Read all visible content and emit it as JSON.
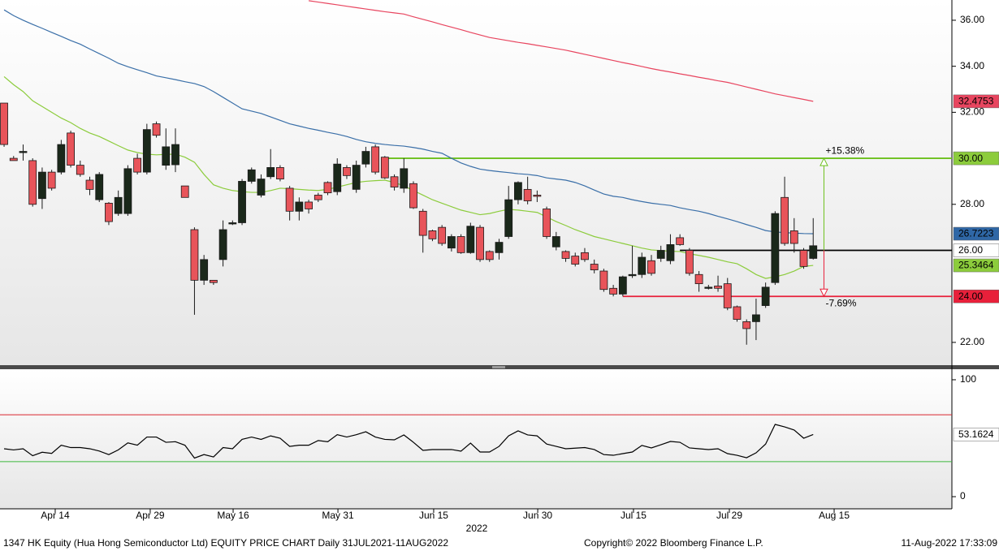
{
  "chart_data": [
    {
      "type": "candlestick",
      "xlim": [
        -0.43,
        99.57
      ],
      "ylim": [
        21.01,
        36.88
      ],
      "yticks": [
        {
          "value": 22,
          "label": "22.00"
        },
        {
          "value": 28,
          "label": "28.00"
        },
        {
          "value": 32,
          "label": "32.00"
        },
        {
          "value": 34,
          "label": "34.00"
        },
        {
          "value": 36,
          "label": "36.00"
        }
      ],
      "up_color": "#1a281a",
      "down_color": "#e8545a",
      "open": [
        32.4,
        30.0,
        30.25,
        29.9,
        28.25,
        29.4,
        29.4,
        31.1,
        29.7,
        29.05,
        28.2,
        28.05,
        27.6,
        27.6,
        30.0,
        29.4,
        31.5,
        29.7,
        29.72,
        28.8,
        26.9,
        24.7,
        24.7,
        25.6,
        27.15,
        27.2,
        29.0,
        28.4,
        29.2,
        29.6,
        28.7,
        27.7,
        28.1,
        28.4,
        28.95,
        28.55,
        29.6,
        28.65,
        29.75,
        30.5,
        30.05,
        29.2,
        28.7,
        28.9,
        27.7,
        26.85,
        27.0,
        26.1,
        26.6,
        25.9,
        27.0,
        25.95,
        25.9,
        26.6,
        28.2,
        28.65,
        28.4,
        27.8,
        26.15,
        25.95,
        25.75,
        25.9,
        25.4,
        25.1,
        24.35,
        24.1,
        24.9,
        24.95,
        25.55,
        25.65,
        25.55,
        26.55,
        26.0,
        24.95,
        24.35,
        24.45,
        24.55,
        23.55,
        22.9,
        22.9,
        23.6,
        24.6,
        28.3,
        26.85,
        26.0,
        25.65
      ],
      "high": [
        32.4,
        30.1,
        30.6,
        30.0,
        29.6,
        29.5,
        30.8,
        31.2,
        29.9,
        29.2,
        29.4,
        28.1,
        28.6,
        29.7,
        30.2,
        31.5,
        31.6,
        31.3,
        31.3,
        28.8,
        27.0,
        25.8,
        24.7,
        27.3,
        27.3,
        29.1,
        29.6,
        29.3,
        30.4,
        29.7,
        28.8,
        28.3,
        28.2,
        28.5,
        29.0,
        30.0,
        29.7,
        29.9,
        30.5,
        30.6,
        30.1,
        29.3,
        30.0,
        29.0,
        27.8,
        26.9,
        27.1,
        26.7,
        26.7,
        27.2,
        27.1,
        26.0,
        26.5,
        28.8,
        29.0,
        29.2,
        28.6,
        27.9,
        26.8,
        26.0,
        25.9,
        26.1,
        25.6,
        25.2,
        24.5,
        24.9,
        26.2,
        25.9,
        25.8,
        26.2,
        26.7,
        26.7,
        26.1,
        25.1,
        24.5,
        24.9,
        24.8,
        23.6,
        23.0,
        23.9,
        24.6,
        27.7,
        29.2,
        27.4,
        26.1,
        27.4
      ],
      "low": [
        30.5,
        29.9,
        29.9,
        27.9,
        27.8,
        28.6,
        29.3,
        29.6,
        29.2,
        28.4,
        28.1,
        27.1,
        27.5,
        27.5,
        29.3,
        29.3,
        30.9,
        29.5,
        29.4,
        28.3,
        23.2,
        24.5,
        24.5,
        25.3,
        27.1,
        27.1,
        28.9,
        28.3,
        29.1,
        29.0,
        27.3,
        27.3,
        27.6,
        28.1,
        28.4,
        28.4,
        29.1,
        28.5,
        29.6,
        29.3,
        29.1,
        28.6,
        28.5,
        27.8,
        25.9,
        26.4,
        26.2,
        25.95,
        25.85,
        25.85,
        25.5,
        25.5,
        25.6,
        26.5,
        28.0,
        28.0,
        28.1,
        26.5,
        26.0,
        25.5,
        25.3,
        25.5,
        25.0,
        24.2,
        24.0,
        24.0,
        24.8,
        24.8,
        24.9,
        25.5,
        25.4,
        26.2,
        24.9,
        24.2,
        24.3,
        24.2,
        23.4,
        22.9,
        21.9,
        22.1,
        23.5,
        24.5,
        26.2,
        25.9,
        25.2,
        25.6
      ],
      "close": [
        30.6,
        29.9,
        30.3,
        28.0,
        29.4,
        28.7,
        30.6,
        29.7,
        29.3,
        28.65,
        29.3,
        27.25,
        28.3,
        29.55,
        29.4,
        31.25,
        31.0,
        30.5,
        30.6,
        28.3,
        24.7,
        25.6,
        24.6,
        26.9,
        27.2,
        29.0,
        29.5,
        29.1,
        29.6,
        29.1,
        27.7,
        28.1,
        27.8,
        28.2,
        28.5,
        29.75,
        29.25,
        29.7,
        30.3,
        29.4,
        29.15,
        28.75,
        29.55,
        27.85,
        26.65,
        26.5,
        26.3,
        26.6,
        25.9,
        27.05,
        25.6,
        25.6,
        26.35,
        28.2,
        28.95,
        28.15,
        28.35,
        26.6,
        26.6,
        25.65,
        25.4,
        25.6,
        25.15,
        24.3,
        24.1,
        24.85,
        24.95,
        25.7,
        25.0,
        26.0,
        26.25,
        26.25,
        25.0,
        24.55,
        24.4,
        24.35,
        23.5,
        23.0,
        22.6,
        23.2,
        24.4,
        27.6,
        26.3,
        26.3,
        25.3,
        26.2
      ],
      "series": [
        {
          "color": "#e8455f",
          "label_bg": "#e8455f",
          "label_color": "#ffffff",
          "values": [
            null,
            null,
            null,
            null,
            null,
            null,
            null,
            null,
            null,
            null,
            null,
            null,
            null,
            null,
            null,
            null,
            null,
            null,
            null,
            null,
            null,
            null,
            null,
            null,
            null,
            null,
            null,
            null,
            null,
            null,
            null,
            null,
            36.85,
            36.79,
            36.73,
            36.67,
            36.61,
            36.55,
            36.49,
            36.43,
            36.37,
            36.32,
            36.27,
            36.15,
            36.04,
            35.93,
            35.81,
            35.7,
            35.59,
            35.47,
            35.36,
            35.25,
            35.18,
            35.11,
            35.04,
            34.98,
            34.91,
            34.84,
            34.77,
            34.7,
            34.61,
            34.52,
            34.43,
            34.34,
            34.25,
            34.16,
            34.08,
            33.99,
            33.9,
            33.82,
            33.75,
            33.67,
            33.6,
            33.52,
            33.45,
            33.37,
            33.3,
            33.2,
            33.1,
            33.0,
            32.9,
            32.8,
            32.72,
            32.64,
            32.56,
            32.4753
          ]
        },
        {
          "color": "#3a6fa8",
          "label_bg": "#2f67a6",
          "label_color": "#ffffff",
          "values": [
            36.45,
            36.2,
            36.0,
            35.82,
            35.65,
            35.47,
            35.3,
            35.12,
            34.96,
            34.75,
            34.55,
            34.35,
            34.13,
            33.98,
            33.85,
            33.72,
            33.58,
            33.5,
            33.42,
            33.33,
            33.25,
            33.12,
            32.9,
            32.65,
            32.4,
            32.15,
            32.05,
            31.95,
            31.8,
            31.65,
            31.5,
            31.4,
            31.3,
            31.22,
            31.13,
            31.05,
            30.95,
            30.82,
            30.72,
            30.65,
            30.6,
            30.56,
            30.53,
            30.47,
            30.4,
            30.3,
            30.22,
            30.0,
            29.8,
            29.65,
            29.53,
            29.47,
            29.42,
            29.38,
            29.33,
            29.3,
            29.25,
            29.15,
            29.1,
            29.05,
            28.95,
            28.8,
            28.62,
            28.45,
            28.35,
            28.3,
            28.2,
            28.12,
            28.05,
            28.0,
            27.95,
            27.85,
            27.77,
            27.7,
            27.6,
            27.48,
            27.37,
            27.25,
            27.12,
            27.0,
            26.86,
            26.8,
            26.77,
            26.75,
            26.73,
            26.7223
          ]
        },
        {
          "color": "#8ccc3c",
          "label_bg": "#8ccc3c",
          "label_color": "#000000",
          "values": [
            33.55,
            33.2,
            32.9,
            32.5,
            32.25,
            32.0,
            31.75,
            31.55,
            31.3,
            31.1,
            30.95,
            30.75,
            30.55,
            30.36,
            30.25,
            30.18,
            30.15,
            30.17,
            30.18,
            30.05,
            29.83,
            29.3,
            28.85,
            28.7,
            28.6,
            28.55,
            28.52,
            28.52,
            28.6,
            28.7,
            28.68,
            28.65,
            28.62,
            28.6,
            28.65,
            28.75,
            28.85,
            28.95,
            29.0,
            29.03,
            29.05,
            28.95,
            28.8,
            28.6,
            28.4,
            28.2,
            28.05,
            27.9,
            27.75,
            27.65,
            27.55,
            27.6,
            27.7,
            27.78,
            27.75,
            27.7,
            27.65,
            27.45,
            27.25,
            27.08,
            26.9,
            26.75,
            26.6,
            26.5,
            26.4,
            26.3,
            26.2,
            26.1,
            26.02,
            25.99,
            25.96,
            25.95,
            25.85,
            25.78,
            25.7,
            25.6,
            25.5,
            25.42,
            25.2,
            24.95,
            24.78,
            24.85,
            24.95,
            25.1,
            25.3,
            25.3464
          ]
        }
      ],
      "levels": [
        {
          "value": 30,
          "label": "30.00",
          "start": 40,
          "color": "#6cc01c",
          "label_bg": "#8ccc3c",
          "label_color": "#000000"
        },
        {
          "value": 26,
          "label": "26.00",
          "start": 71,
          "color": "#000000",
          "label_bg": "#ffffff",
          "label_color": "#000000"
        },
        {
          "value": 24,
          "label": "24.00",
          "start": 65,
          "color": "#e8203a",
          "label_bg": "#e8203a",
          "label_color": "#ffffff"
        }
      ],
      "range_arrows": {
        "base": 26,
        "up": {
          "target": 30,
          "label": "+15.38%",
          "color": "#6cc01c"
        },
        "down": {
          "target": 24,
          "label": "-7.69%",
          "color": "#e8203a"
        }
      }
    },
    {
      "type": "line",
      "xlim": [
        -0.43,
        99.57
      ],
      "ylim": [
        -9,
        109
      ],
      "yticks": [
        0,
        100
      ],
      "xticks": [
        {
          "value": 5.37,
          "label": "Apr 14"
        },
        {
          "value": 15.35,
          "label": "Apr 29"
        },
        {
          "value": 24.06,
          "label": "May 16"
        },
        {
          "value": 35.07,
          "label": "May 31"
        },
        {
          "value": 45.13,
          "label": "Jun 15"
        },
        {
          "value": 56.06,
          "label": "Jun 30"
        },
        {
          "value": 66.12,
          "label": "Jul 15"
        },
        {
          "value": 76.19,
          "label": "Jul 29"
        },
        {
          "value": 87.2,
          "label": "Aug 15"
        }
      ],
      "xlabel": "2022",
      "levels": [
        {
          "value": 70,
          "color": "#d8262e"
        },
        {
          "value": 30,
          "color": "#3cb83c"
        }
      ],
      "series": [
        {
          "color": "#000000",
          "label_bg": "#ffffff",
          "label_color": "#000000",
          "values": [
            41,
            40,
            41,
            35,
            38,
            37,
            44,
            42,
            42,
            41,
            39,
            36,
            40,
            46,
            44,
            51,
            51,
            46.5,
            47,
            44,
            33,
            36,
            34,
            42,
            41,
            49,
            51,
            49,
            52,
            50,
            43,
            44,
            44,
            48,
            47,
            53,
            51,
            53,
            55.5,
            51,
            49,
            48.6,
            52.8,
            46.5,
            39.6,
            40.3,
            40.3,
            40.3,
            38.9,
            45.8,
            38.2,
            38.2,
            43,
            52,
            56.3,
            52.8,
            52,
            45,
            43,
            41,
            41.5,
            42,
            40.3,
            36,
            35.4,
            36.8,
            38.2,
            43.8,
            41.7,
            44.4,
            47.2,
            46.5,
            41.7,
            41,
            40.3,
            41,
            36.8,
            35.4,
            33.3,
            37.5,
            45,
            61.8,
            59.7,
            57,
            50,
            53.1624
          ]
        }
      ]
    }
  ],
  "footer": {
    "left": "1347 HK Equity (Hua Hong Semiconductor Ltd) EQUITY PRICE CHART  Daily 31JUL2021-11AUG2022",
    "center": "Copyright© 2022 Bloomberg Finance L.P.",
    "right": "11-Aug-2022 17:33:09"
  }
}
